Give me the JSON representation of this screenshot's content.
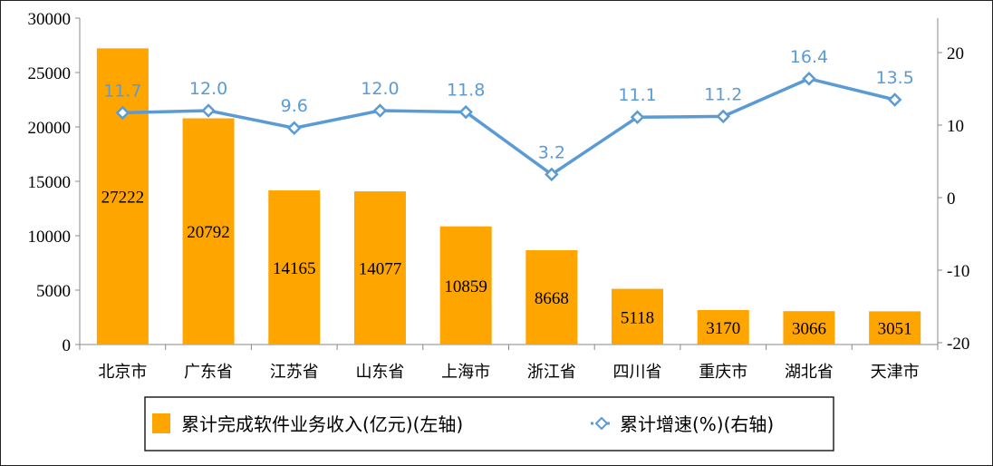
{
  "chart_data": {
    "type": "bar",
    "categories": [
      "北京市",
      "广东省",
      "江苏省",
      "山东省",
      "上海市",
      "浙江省",
      "四川省",
      "重庆市",
      "湖北省",
      "天津市"
    ],
    "series": [
      {
        "name": "累计完成软件业务收入(亿元)(左轴)",
        "type": "bar",
        "axis": "left",
        "color": "#ffa500",
        "values": [
          27222,
          20792,
          14165,
          14077,
          10859,
          8668,
          5118,
          3170,
          3066,
          3051
        ]
      },
      {
        "name": "累计增速(%)(右轴)",
        "type": "line",
        "axis": "right",
        "color": "#5b9bd5",
        "values": [
          11.7,
          12.0,
          9.6,
          12.0,
          11.8,
          3.2,
          11.1,
          11.2,
          16.4,
          13.5
        ]
      }
    ],
    "left_axis": {
      "ylim": [
        0,
        30000
      ],
      "ticks": [
        0,
        5000,
        10000,
        15000,
        20000,
        25000,
        30000
      ]
    },
    "right_axis": {
      "ylim": [
        -20,
        25
      ],
      "ticks": [
        -20,
        -10,
        0,
        10,
        20
      ]
    },
    "grid": false,
    "legend": "bottom"
  }
}
